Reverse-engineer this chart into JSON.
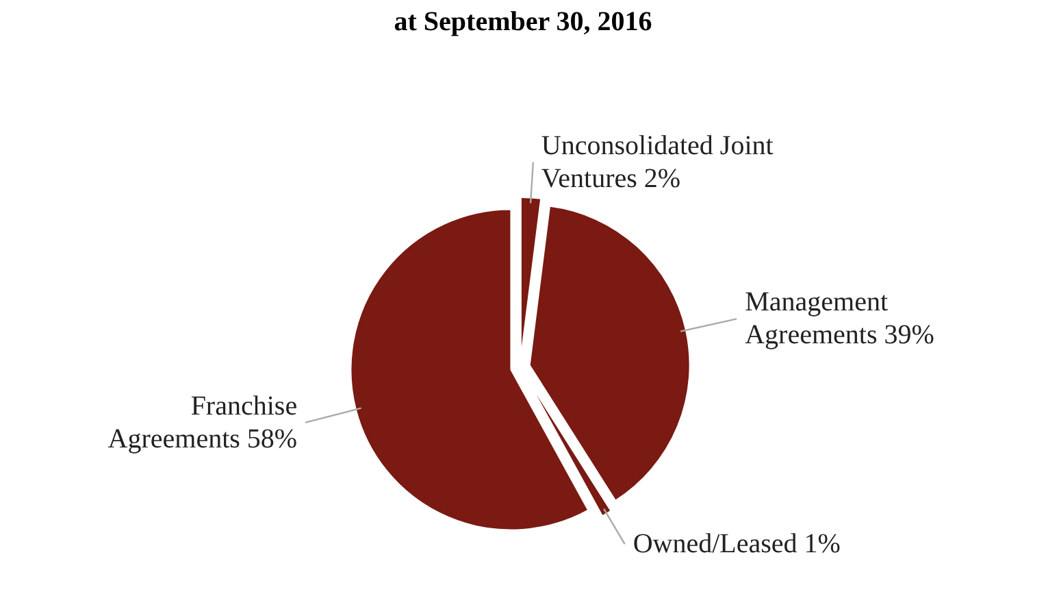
{
  "chart_data": {
    "type": "pie",
    "title": "at September 30, 2016",
    "categories": [
      "Unconsolidated Joint Ventures",
      "Management Agreements",
      "Owned/Leased",
      "Franchise Agreements"
    ],
    "values": [
      2,
      39,
      1,
      58
    ],
    "value_labels": [
      "2%",
      "39%",
      "1%",
      "58%"
    ],
    "colors": [
      "#7a1a12",
      "#7a1a12",
      "#7a1a12",
      "#7a1a12"
    ]
  }
}
